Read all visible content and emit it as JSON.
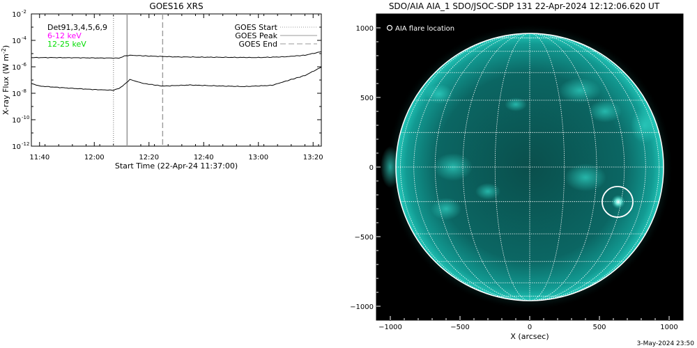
{
  "left_panel": {
    "title": "GOES16 XRS",
    "ylabel_text": "X-ray Flux (W m",
    "ylabel_sup": "-2",
    "ylabel_close": ")",
    "xlabel": "Start Time (22-Apr-24 11:37:00)",
    "det_label": "Det91,3,4,5,6,9",
    "band_low_label": "6-12 keV",
    "band_high_label": "12-25 keV",
    "legend": {
      "start": "GOES Start",
      "peak": "GOES Peak",
      "end": "GOES End"
    },
    "colors": {
      "band_low": "#ff00ff",
      "band_high": "#00dd00",
      "axes": "#000000"
    }
  },
  "right_panel": {
    "title": "SDO/AIA AIA_1 SDO/JSOC-SDP 131 22-Apr-2024 12:12:06.620 UT",
    "flare_legend": "AIA flare location",
    "xlabel": "X (arcsec)",
    "disk_color": "#0e8f88",
    "background": "#000000"
  },
  "footer_date": "3-May-2024 23:50",
  "chart_data": [
    {
      "type": "line",
      "title": "GOES16 XRS",
      "xlabel": "Start Time (22-Apr-24 11:37:00)",
      "ylabel": "X-ray Flux (W m^-2)",
      "y_scale": "log",
      "ylim": [
        1e-12,
        0.01
      ],
      "y_ticks": [
        {
          "exp": -2,
          "value": 0.01
        },
        {
          "exp": -4,
          "value": 0.0001
        },
        {
          "exp": -6,
          "value": 1e-06
        },
        {
          "exp": -8,
          "value": 1e-08
        },
        {
          "exp": -10,
          "value": 1e-10
        },
        {
          "exp": -12,
          "value": 1e-12
        }
      ],
      "xlim": [
        "11:37",
        "13:23"
      ],
      "x_ticks": [
        "11:40",
        "12:00",
        "12:20",
        "12:40",
        "13:00",
        "13:20"
      ],
      "vlines": [
        {
          "name": "GOES Start",
          "time": "12:07",
          "style": "dotted"
        },
        {
          "name": "GOES Peak",
          "time": "12:12",
          "style": "solid"
        },
        {
          "name": "GOES End",
          "time": "12:25",
          "style": "dashed"
        }
      ],
      "series": [
        {
          "name": "6-12 keV",
          "x": [
            "11:37",
            "11:45",
            "11:55",
            "12:05",
            "12:09",
            "12:11",
            "12:13",
            "12:20",
            "12:30",
            "12:40",
            "12:50",
            "13:00",
            "13:10",
            "13:17",
            "13:23"
          ],
          "y": [
            5e-06,
            5e-06,
            4.8e-06,
            4.6e-06,
            4.5e-06,
            6.5e-06,
            7.5e-06,
            6.5e-06,
            5.6e-06,
            5.4e-06,
            5.2e-06,
            5e-06,
            5.8e-06,
            7.5e-06,
            1.4e-05
          ]
        },
        {
          "name": "12-25 keV",
          "x": [
            "11:37",
            "11:40",
            "11:50",
            "12:00",
            "12:07",
            "12:09",
            "12:11",
            "12:13",
            "12:18",
            "12:25",
            "12:35",
            "12:45",
            "12:55",
            "13:05",
            "13:12",
            "13:17",
            "13:23"
          ],
          "y": [
            5.5e-08,
            3.5e-08,
            2.5e-08,
            1.9e-08,
            1.7e-08,
            2.3e-08,
            4.5e-08,
            1.1e-07,
            5.5e-08,
            3.5e-08,
            4.2e-08,
            3.6e-08,
            3.2e-08,
            4e-08,
            1.1e-07,
            2.2e-07,
            9.5e-07
          ]
        }
      ]
    },
    {
      "type": "image",
      "title": "SDO/AIA AIA_1 SDO/JSOC-SDP 131 22-Apr-2024 12:12:06.620 UT",
      "xlabel": "X (arcsec)",
      "xlim": [
        -1100,
        1100
      ],
      "ylim": [
        -1100,
        1100
      ],
      "x_ticks": [
        -1000,
        -500,
        0,
        500,
        1000
      ],
      "y_ticks": [
        -1000,
        -500,
        0,
        500,
        1000
      ],
      "solar_radius_arcsec": 960,
      "flare_location": {
        "x": 630,
        "y": -250,
        "radius": 110
      }
    }
  ]
}
